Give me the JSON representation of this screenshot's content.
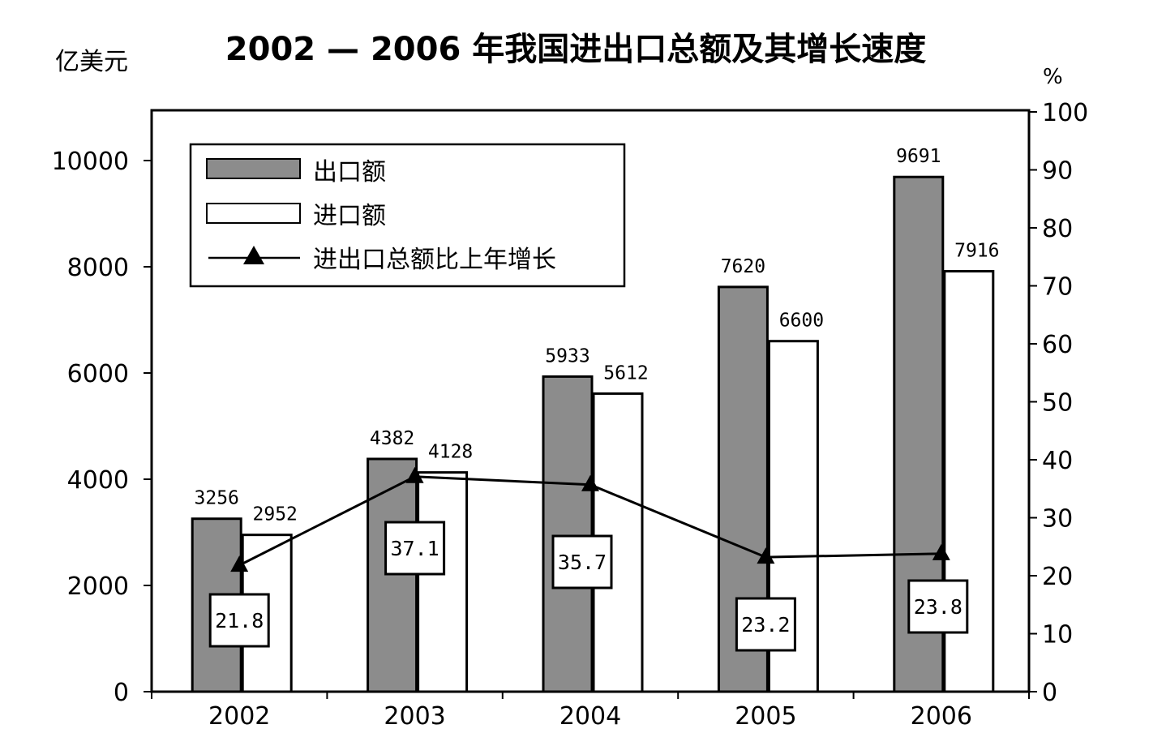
{
  "chart_data": {
    "type": "bar",
    "title": "2002 — 2006 年我国进出口总额及其增长速度",
    "y_left_unit": "亿美元",
    "y_right_unit": "%",
    "categories": [
      "2002",
      "2003",
      "2004",
      "2005",
      "2006"
    ],
    "ylim_left": [
      0,
      11000
    ],
    "ylim_right": [
      0,
      100
    ],
    "yticks_left": [
      "0",
      "2000",
      "4000",
      "6000",
      "8000",
      "10000"
    ],
    "yticks_right": [
      "0",
      "10",
      "20",
      "30",
      "40",
      "50",
      "60",
      "70",
      "80",
      "90",
      "100"
    ],
    "series": [
      {
        "name": "出口额",
        "type": "bar",
        "color": "#8c8c8c",
        "values": [
          3256,
          4382,
          5933,
          7620,
          9691
        ],
        "labels": [
          "3256",
          "4382",
          "5933",
          "7620",
          "9691"
        ]
      },
      {
        "name": "进口额",
        "type": "bar",
        "color": "#ffffff",
        "values": [
          2952,
          4128,
          5612,
          6600,
          7916
        ],
        "labels": [
          "2952",
          "4128",
          "5612",
          "6600",
          "7916"
        ]
      },
      {
        "name": "进出口总额比上年增长",
        "type": "line",
        "axis": "right",
        "color": "#000000",
        "marker": "triangle",
        "values": [
          21.8,
          37.1,
          35.7,
          23.2,
          23.8
        ],
        "labels": [
          "21.8",
          "37.1",
          "35.7",
          "23.2",
          "23.8"
        ]
      }
    ],
    "grid": false,
    "legend_position": "top-left"
  }
}
